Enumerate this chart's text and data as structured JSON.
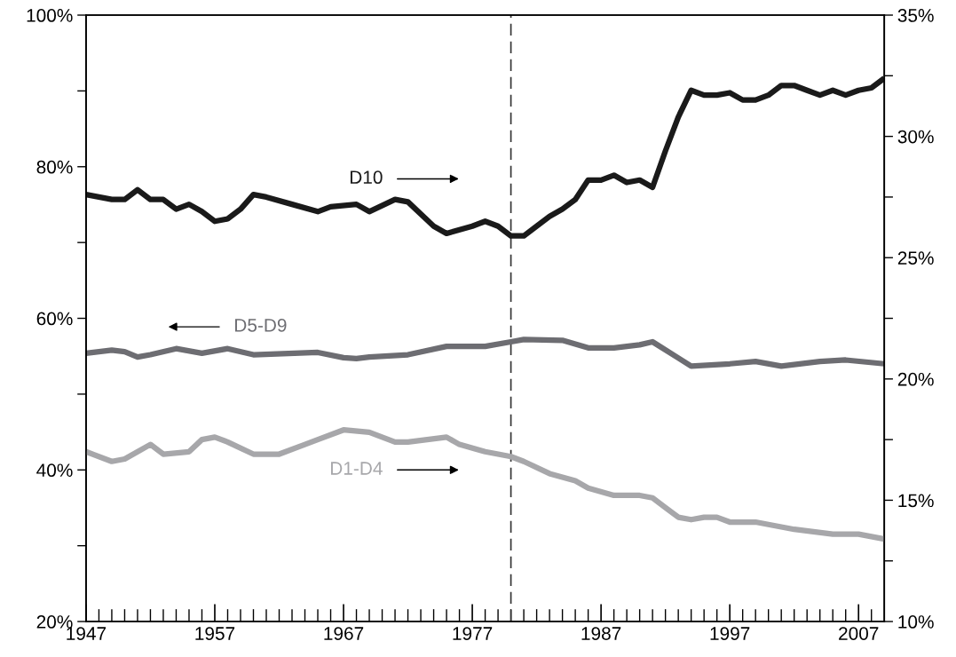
{
  "chart_data": {
    "type": "line",
    "xlim": [
      1947,
      2009
    ],
    "xticks": [
      1947,
      {
        "value": 1948,
        "label": null
      },
      {
        "value": 1949,
        "label": null
      },
      {
        "value": 1950,
        "label": null
      },
      {
        "value": 1951,
        "label": null
      },
      {
        "value": 1952,
        "label": null
      },
      {
        "value": 1953,
        "label": null
      },
      {
        "value": 1954,
        "label": null
      },
      {
        "value": 1955,
        "label": null
      },
      {
        "value": 1956,
        "label": null
      },
      1957,
      {
        "value": 1958,
        "label": null
      },
      {
        "value": 1959,
        "label": null
      },
      {
        "value": 1960,
        "label": null
      },
      {
        "value": 1961,
        "label": null
      },
      {
        "value": 1962,
        "label": null
      },
      {
        "value": 1963,
        "label": null
      },
      {
        "value": 1964,
        "label": null
      },
      {
        "value": 1965,
        "label": null
      },
      {
        "value": 1966,
        "label": null
      },
      1967,
      {
        "value": 1968,
        "label": null
      },
      {
        "value": 1969,
        "label": null
      },
      {
        "value": 1970,
        "label": null
      },
      {
        "value": 1971,
        "label": null
      },
      {
        "value": 1972,
        "label": null
      },
      {
        "value": 1973,
        "label": null
      },
      {
        "value": 1974,
        "label": null
      },
      {
        "value": 1975,
        "label": null
      },
      {
        "value": 1976,
        "label": null
      },
      1977,
      {
        "value": 1978,
        "label": null
      },
      {
        "value": 1979,
        "label": null
      },
      {
        "value": 1980,
        "label": null
      },
      {
        "value": 1981,
        "label": null
      },
      {
        "value": 1982,
        "label": null
      },
      {
        "value": 1983,
        "label": null
      },
      {
        "value": 1984,
        "label": null
      },
      {
        "value": 1985,
        "label": null
      },
      {
        "value": 1986,
        "label": null
      },
      1987,
      {
        "value": 1988,
        "label": null
      },
      {
        "value": 1989,
        "label": null
      },
      {
        "value": 1990,
        "label": null
      },
      {
        "value": 1991,
        "label": null
      },
      {
        "value": 1992,
        "label": null
      },
      {
        "value": 1993,
        "label": null
      },
      {
        "value": 1994,
        "label": null
      },
      {
        "value": 1995,
        "label": null
      },
      {
        "value": 1996,
        "label": null
      },
      1997,
      {
        "value": 1998,
        "label": null
      },
      {
        "value": 1999,
        "label": null
      },
      {
        "value": 2000,
        "label": null
      },
      {
        "value": 2001,
        "label": null
      },
      {
        "value": 2002,
        "label": null
      },
      {
        "value": 2003,
        "label": null
      },
      {
        "value": 2004,
        "label": null
      },
      {
        "value": 2005,
        "label": null
      },
      {
        "value": 2006,
        "label": null
      },
      2007,
      {
        "value": 2008,
        "label": null
      }
    ],
    "ylim": [
      20,
      100
    ],
    "yticks": [
      {
        "value": 20,
        "label": "20%"
      },
      {
        "value": 30,
        "label": null
      },
      {
        "value": 40,
        "label": "40%"
      },
      {
        "value": 50,
        "label": null
      },
      {
        "value": 60,
        "label": "60%"
      },
      {
        "value": 70,
        "label": null
      },
      {
        "value": 80,
        "label": "80%"
      },
      {
        "value": 90,
        "label": null
      },
      {
        "value": 100,
        "label": "100%"
      }
    ],
    "y2lim": [
      10,
      35
    ],
    "y2ticks": [
      {
        "value": 10,
        "label": "10%"
      },
      {
        "value": 12.5,
        "label": null
      },
      {
        "value": 15,
        "label": "15%"
      },
      {
        "value": 17.5,
        "label": null
      },
      {
        "value": 20,
        "label": "20%"
      },
      {
        "value": 22.5,
        "label": null
      },
      {
        "value": 25,
        "label": "25%"
      },
      {
        "value": 27.5,
        "label": null
      },
      {
        "value": 30,
        "label": "30%"
      },
      {
        "value": 32.5,
        "label": null
      },
      {
        "value": 35,
        "label": "35%"
      }
    ],
    "grid": false,
    "legend": false,
    "marker": "none",
    "line_style": "solid",
    "ref_lines": [
      {
        "axis": "x",
        "value": 1980,
        "color": "#333333",
        "line_style": "dashed"
      }
    ],
    "series": [
      {
        "name": "D10",
        "axis": "y2",
        "color": "#1a1a1a",
        "x": [
          1947,
          1949,
          1950,
          1951,
          1952,
          1953,
          1954,
          1955,
          1956,
          1957,
          1958,
          1959,
          1960,
          1961,
          1963,
          1965,
          1966,
          1968,
          1969,
          1971,
          1972,
          1974,
          1975,
          1977,
          1978,
          1979,
          1980,
          1981,
          1983,
          1984,
          1985,
          1986,
          1987,
          1988,
          1989,
          1990,
          1991,
          1992,
          1993,
          1994,
          1995,
          1996,
          1997,
          1998,
          1999,
          2000,
          2001,
          2002,
          2003,
          2004,
          2005,
          2006,
          2007,
          2008,
          2009
        ],
        "values": [
          27.6,
          27.4,
          27.4,
          27.8,
          27.4,
          27.4,
          27.0,
          27.2,
          26.9,
          26.5,
          26.6,
          27.0,
          27.6,
          27.5,
          27.2,
          26.9,
          27.1,
          27.2,
          26.9,
          27.4,
          27.3,
          26.3,
          26.0,
          26.3,
          26.5,
          26.3,
          25.9,
          25.9,
          26.7,
          27.0,
          27.4,
          28.2,
          28.2,
          28.4,
          28.1,
          28.2,
          27.9,
          29.4,
          30.8,
          31.9,
          31.7,
          31.7,
          31.8,
          31.5,
          31.5,
          31.7,
          32.1,
          32.1,
          31.9,
          31.7,
          31.9,
          31.7,
          31.9,
          32.0,
          32.4
        ]
      },
      {
        "name": "D5-D9",
        "axis": "y",
        "color": "#6d6d72",
        "x": [
          1947,
          1949,
          1950,
          1951,
          1952,
          1954,
          1956,
          1958,
          1960,
          1965,
          1967,
          1968,
          1969,
          1972,
          1975,
          1978,
          1980,
          1981,
          1984,
          1986,
          1988,
          1990,
          1991,
          1994,
          1997,
          1999,
          2001,
          2004,
          2006,
          2009
        ],
        "values": [
          55.4,
          55.8,
          55.6,
          54.9,
          55.2,
          56.0,
          55.4,
          56.0,
          55.2,
          55.5,
          54.8,
          54.7,
          54.9,
          55.2,
          56.3,
          56.3,
          56.9,
          57.2,
          57.1,
          56.1,
          56.1,
          56.5,
          56.9,
          53.7,
          54.0,
          54.3,
          53.7,
          54.3,
          54.5,
          54.0
        ]
      },
      {
        "name": "D1-D4",
        "axis": "y2",
        "color": "#a7a7aa",
        "x": [
          1947,
          1949,
          1950,
          1952,
          1953,
          1955,
          1956,
          1957,
          1958,
          1960,
          1962,
          1964,
          1965,
          1967,
          1969,
          1971,
          1972,
          1975,
          1976,
          1978,
          1980,
          1981,
          1983,
          1985,
          1986,
          1988,
          1990,
          1991,
          1992,
          1993,
          1994,
          1995,
          1996,
          1997,
          1999,
          2000,
          2002,
          2005,
          2006,
          2007,
          2009
        ],
        "values": [
          17.0,
          16.6,
          16.7,
          17.3,
          16.9,
          17.0,
          17.5,
          17.6,
          17.4,
          16.9,
          16.9,
          17.3,
          17.5,
          17.9,
          17.8,
          17.4,
          17.4,
          17.6,
          17.3,
          17.0,
          16.8,
          16.6,
          16.1,
          15.8,
          15.5,
          15.2,
          15.2,
          15.1,
          14.7,
          14.3,
          14.2,
          14.3,
          14.3,
          14.1,
          14.1,
          14.0,
          13.8,
          13.6,
          13.6,
          13.6,
          13.4
        ]
      }
    ]
  }
}
